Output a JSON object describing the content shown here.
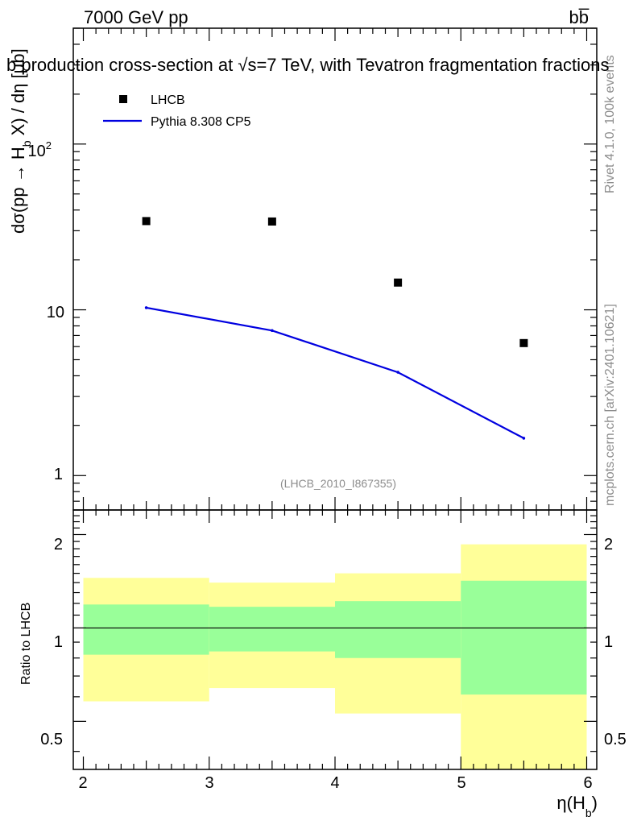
{
  "header": {
    "energy_label": "7000 GeV pp",
    "process_label": "bb̅"
  },
  "side_text": {
    "rivet": "Rivet 4.1.0,  100k events",
    "source": "mcplots.cern.ch [arXiv:2401.10621]"
  },
  "chart_data": [
    {
      "type": "scatter",
      "title": "b production cross-section at √s=7 TeV, with Tevatron fragmentation fractions",
      "ylabel": "dσ(pp → H_b X) / dη [μb]",
      "xlabel": "",
      "yscale": "log",
      "xlim": [
        1.92,
        6.08
      ],
      "ylim": [
        0.62,
        500
      ],
      "ytick_labels": [
        "1",
        "10",
        "10^2"
      ],
      "analysis_id": "(LHCB_2010_I867355)",
      "legend": [
        "LHCB",
        "Pythia 8.308 CP5"
      ],
      "series": [
        {
          "name": "LHCB",
          "kind": "markers",
          "color": "#000000",
          "x": [
            2.5,
            3.5,
            4.5,
            5.5
          ],
          "y": [
            34.3,
            34.1,
            14.6,
            6.3
          ]
        },
        {
          "name": "Pythia 8.308 CP5",
          "kind": "line",
          "color": "#0000e0",
          "x": [
            2.5,
            3.5,
            4.5,
            5.5
          ],
          "y": [
            10.3,
            7.5,
            4.2,
            1.68
          ]
        }
      ]
    },
    {
      "type": "area",
      "title": "",
      "ylabel": "Ratio to LHCB",
      "xlabel": "η(H_b)",
      "yscale": "log",
      "xlim": [
        1.92,
        6.08
      ],
      "ylim": [
        0.35,
        2.4
      ],
      "xtick_labels": [
        "2",
        "3",
        "4",
        "5",
        "6"
      ],
      "ytick_labels": [
        "0.5",
        "1",
        "2"
      ],
      "reference_line": 1.0,
      "bins": [
        {
          "x_low": 2,
          "x_high": 3,
          "outer": [
            0.58,
            1.45
          ],
          "inner": [
            0.82,
            1.19
          ]
        },
        {
          "x_low": 3,
          "x_high": 4,
          "outer": [
            0.64,
            1.4
          ],
          "inner": [
            0.84,
            1.17
          ]
        },
        {
          "x_low": 4,
          "x_high": 5,
          "outer": [
            0.53,
            1.5
          ],
          "inner": [
            0.8,
            1.22
          ]
        },
        {
          "x_low": 5,
          "x_high": 6,
          "outer": [
            0.35,
            1.86
          ],
          "inner": [
            0.61,
            1.42
          ]
        }
      ],
      "colors": {
        "outer": "#ffff99",
        "inner": "#99ff99"
      }
    }
  ]
}
